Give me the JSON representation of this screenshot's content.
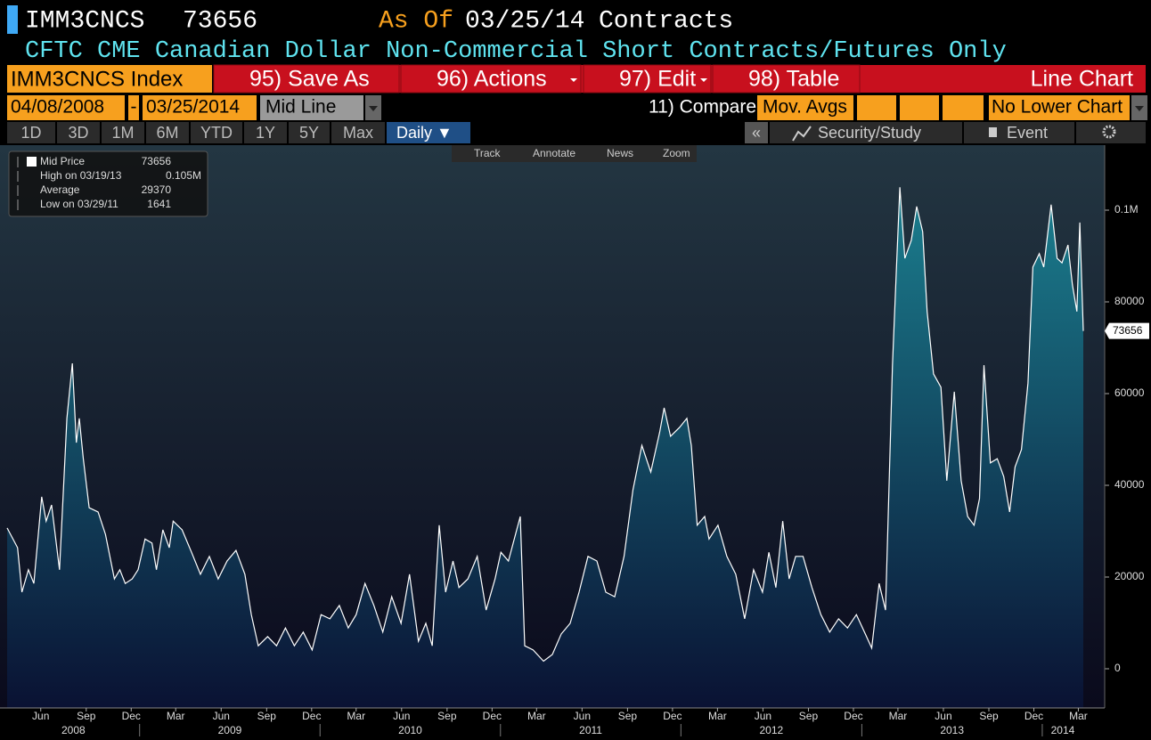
{
  "header": {
    "ticker": "IMM3CNCS",
    "last_value": "73656",
    "as_of_label": "As Of",
    "as_of_date": "03/25/14",
    "units": "Contracts",
    "description": "CFTC CME Canadian Dollar Non-Commercial Short Contracts/Futures Only"
  },
  "toolbar": {
    "security": "IMM3CNCS Index",
    "buttons": [
      "95) Save As",
      "96) Actions",
      "97) Edit",
      "98) Table"
    ],
    "chart_type": "Line Chart"
  },
  "settings": {
    "start_date": "04/08/2008",
    "separator": "-",
    "end_date": "03/25/2014",
    "mode": "Mid Line",
    "compare": "11) Compare",
    "mov_avgs": "Mov. Avgs",
    "lower_chart": "No Lower Chart"
  },
  "periods": [
    "1D",
    "3D",
    "1M",
    "6M",
    "YTD",
    "1Y",
    "5Y",
    "Max"
  ],
  "frequency": "Daily ▼",
  "right_tools": [
    "«",
    "Security/Study",
    "Event"
  ],
  "chart_tools": [
    "Track",
    "Annotate",
    "News",
    "Zoom"
  ],
  "legend": [
    {
      "label": "Mid Price",
      "value": "73656"
    },
    {
      "label": "High on 03/19/13",
      "value": "0.105M"
    },
    {
      "label": "Average",
      "value": "29370"
    },
    {
      "label": "Low on 03/29/11",
      "value": "1641"
    }
  ],
  "chart_data": {
    "type": "area",
    "color": "#ffffff",
    "fill_top": "#1b7f8f",
    "fill_bottom": "#0a1233",
    "x": [
      "2008-04-08",
      "2008-04-29",
      "2008-05-08",
      "2008-05-21",
      "2008-06-01",
      "2008-06-17",
      "2008-06-26",
      "2008-07-07",
      "2008-07-23",
      "2008-08-07",
      "2008-08-18",
      "2008-08-26",
      "2008-09-01",
      "2008-09-09",
      "2008-09-21",
      "2008-10-09",
      "2008-10-24",
      "2008-11-11",
      "2008-11-22",
      "2008-12-03",
      "2008-12-17",
      "2008-12-29",
      "2009-01-12",
      "2009-01-26",
      "2009-02-04",
      "2009-02-17",
      "2009-03-02",
      "2009-03-10",
      "2009-03-28",
      "2009-04-16",
      "2009-05-04",
      "2009-05-22",
      "2009-06-09",
      "2009-06-27",
      "2009-07-15",
      "2009-08-02",
      "2009-08-15",
      "2009-08-29",
      "2009-09-17",
      "2009-10-05",
      "2009-10-23",
      "2009-11-10",
      "2009-11-28",
      "2009-12-16",
      "2010-01-03",
      "2010-01-21",
      "2010-02-09",
      "2010-02-27",
      "2010-03-15",
      "2010-04-02",
      "2010-04-20",
      "2010-05-08",
      "2010-05-26",
      "2010-06-14",
      "2010-07-01",
      "2010-07-19",
      "2010-08-03",
      "2010-08-16",
      "2010-08-30",
      "2010-09-12",
      "2010-09-27",
      "2010-10-09",
      "2010-10-27",
      "2010-11-15",
      "2010-12-03",
      "2010-12-21",
      "2011-01-02",
      "2011-01-17",
      "2011-02-10",
      "2011-02-19",
      "2011-03-08",
      "2011-03-29",
      "2011-04-16",
      "2011-05-04",
      "2011-05-22",
      "2011-06-09",
      "2011-06-27",
      "2011-07-15",
      "2011-08-02",
      "2011-08-20",
      "2011-09-08",
      "2011-09-26",
      "2011-10-14",
      "2011-11-01",
      "2011-11-19",
      "2011-11-28",
      "2011-12-11",
      "2011-12-29",
      "2012-01-13",
      "2012-01-22",
      "2012-02-03",
      "2012-02-18",
      "2012-02-27",
      "2012-03-16",
      "2012-04-03",
      "2012-04-21",
      "2012-05-09",
      "2012-05-27",
      "2012-06-14",
      "2012-06-27",
      "2012-07-11",
      "2012-07-25",
      "2012-08-07",
      "2012-08-20",
      "2012-09-04",
      "2012-09-22",
      "2012-10-10",
      "2012-10-28",
      "2012-11-15",
      "2012-12-03",
      "2012-12-21",
      "2013-01-08",
      "2013-01-21",
      "2013-02-05",
      "2013-02-18",
      "2013-03-04",
      "2013-03-12",
      "2013-03-19",
      "2013-03-29",
      "2013-04-11",
      "2013-04-22",
      "2013-05-04",
      "2013-05-13",
      "2013-05-26",
      "2013-06-10",
      "2013-06-22",
      "2013-07-07",
      "2013-07-21",
      "2013-08-03",
      "2013-08-16",
      "2013-08-27",
      "2013-09-05",
      "2013-09-18",
      "2013-10-02",
      "2013-10-15",
      "2013-10-27",
      "2013-11-07",
      "2013-11-20",
      "2013-12-03",
      "2013-12-13",
      "2013-12-26",
      "2014-01-04",
      "2014-01-19",
      "2014-01-31",
      "2014-02-10",
      "2014-02-22",
      "2014-03-03",
      "2014-03-12",
      "2014-03-18",
      "2014-03-25"
    ],
    "values": [
      30700,
      26400,
      16700,
      21600,
      18600,
      37500,
      32200,
      35700,
      21600,
      54600,
      66600,
      49300,
      54600,
      45800,
      35100,
      34200,
      29300,
      19600,
      21600,
      18600,
      19600,
      21600,
      28300,
      27400,
      21600,
      30300,
      26400,
      32200,
      30300,
      25400,
      20600,
      24500,
      19600,
      23500,
      25800,
      20600,
      11800,
      5000,
      7000,
      5000,
      8900,
      5000,
      8000,
      4100,
      11800,
      10900,
      13800,
      8900,
      11800,
      18600,
      13800,
      8000,
      15700,
      9900,
      20600,
      6000,
      9900,
      5000,
      31300,
      16700,
      23500,
      17700,
      19600,
      24500,
      12800,
      19600,
      25400,
      23500,
      33200,
      5000,
      4100,
      1641,
      3100,
      7600,
      9900,
      16700,
      24500,
      23500,
      16700,
      15700,
      24500,
      39000,
      48700,
      42900,
      51600,
      56900,
      50700,
      52600,
      54600,
      48700,
      31300,
      33200,
      28300,
      31300,
      24500,
      20600,
      10900,
      21600,
      16700,
      25400,
      17700,
      32200,
      19600,
      24500,
      24500,
      17700,
      11800,
      8000,
      10900,
      8900,
      11800,
      7600,
      4500,
      18600,
      12800,
      66200,
      87600,
      105000,
      89500,
      93400,
      100800,
      95300,
      77900,
      64300,
      61400,
      41000,
      60400,
      41000,
      33200,
      31300,
      37100,
      66200,
      44900,
      45800,
      41900,
      34200,
      44000,
      47800,
      62300,
      87600,
      90500,
      87600,
      101200,
      89500,
      88500,
      92400,
      83700,
      77900,
      97300,
      73656
    ],
    "xlim": [
      "2008-04-08",
      "2014-03-25"
    ],
    "xticks": [
      {
        "value": "2008-06",
        "label": "Jun"
      },
      {
        "value": "2008-09",
        "label": "Sep"
      },
      {
        "value": "2008-12",
        "label": "Dec"
      },
      {
        "value": "2009-03",
        "label": "Mar"
      },
      {
        "value": "2009-06",
        "label": "Jun"
      },
      {
        "value": "2009-09",
        "label": "Sep"
      },
      {
        "value": "2009-12",
        "label": "Dec"
      },
      {
        "value": "2010-03",
        "label": "Mar"
      },
      {
        "value": "2010-06",
        "label": "Jun"
      },
      {
        "value": "2010-09",
        "label": "Sep"
      },
      {
        "value": "2010-12",
        "label": "Dec"
      },
      {
        "value": "2011-03",
        "label": "Mar"
      },
      {
        "value": "2011-06",
        "label": "Jun"
      },
      {
        "value": "2011-09",
        "label": "Sep"
      },
      {
        "value": "2011-12",
        "label": "Dec"
      },
      {
        "value": "2012-03",
        "label": "Mar"
      },
      {
        "value": "2012-06",
        "label": "Jun"
      },
      {
        "value": "2012-09",
        "label": "Sep"
      },
      {
        "value": "2012-12",
        "label": "Dec"
      },
      {
        "value": "2013-03",
        "label": "Mar"
      },
      {
        "value": "2013-06",
        "label": "Jun"
      },
      {
        "value": "2013-09",
        "label": "Sep"
      },
      {
        "value": "2013-12",
        "label": "Dec"
      },
      {
        "value": "2014-03",
        "label": "Mar"
      }
    ],
    "year_ticks": [
      2008,
      2009,
      2010,
      2011,
      2012,
      2013,
      2014
    ],
    "ylim": [
      -8544,
      114175
    ],
    "yticks": [
      0,
      20000,
      40000,
      60000,
      80000,
      {
        "value": 100000,
        "label": "0.1M"
      }
    ],
    "y_axis_side": "right"
  }
}
